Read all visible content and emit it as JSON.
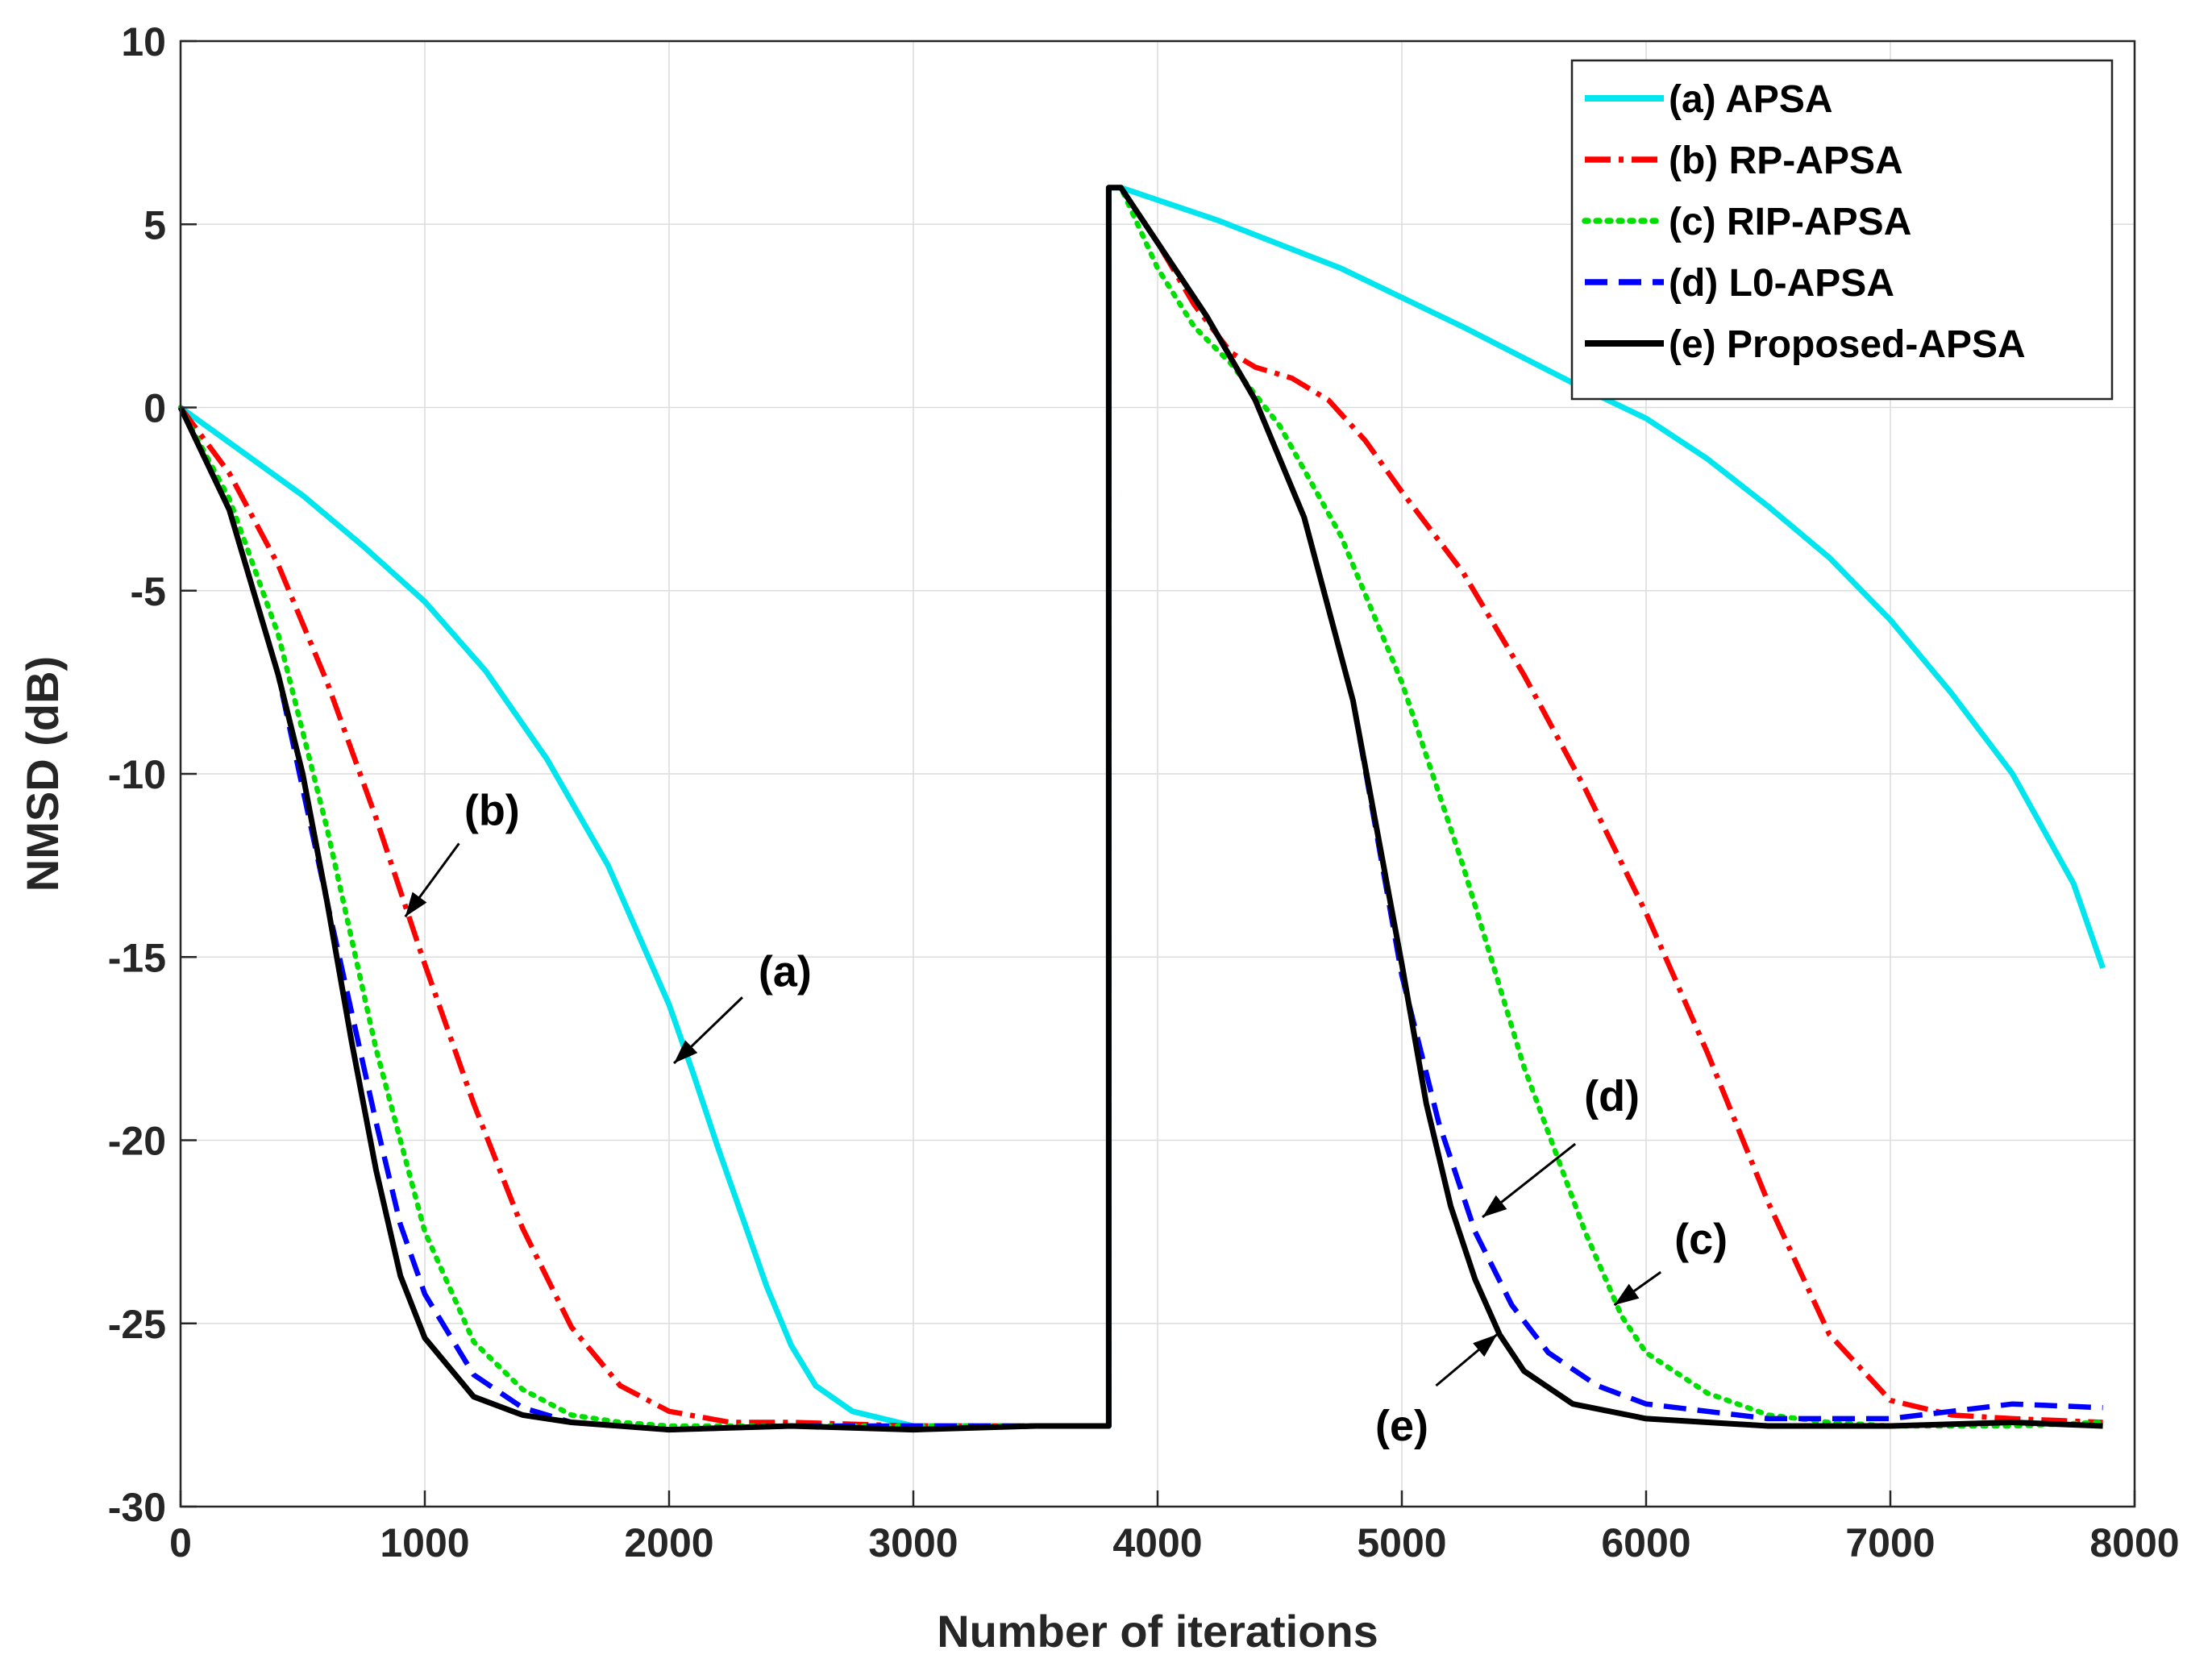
{
  "chart_data": {
    "type": "line",
    "title": "",
    "xlabel": "Number of iterations",
    "ylabel": "NMSD (dB)",
    "xlim": [
      0,
      8000
    ],
    "ylim": [
      -30,
      10
    ],
    "xticks": [
      0,
      1000,
      2000,
      3000,
      4000,
      5000,
      6000,
      7000,
      8000
    ],
    "yticks": [
      -30,
      -25,
      -20,
      -15,
      -10,
      -5,
      0,
      5,
      10
    ],
    "xtick_labels": [
      "0",
      "1000",
      "2000",
      "3000",
      "4000",
      "5000",
      "6000",
      "7000",
      "8000"
    ],
    "ytick_labels": [
      "-30",
      "-25",
      "-20",
      "-15",
      "-10",
      "-5",
      "0",
      "5",
      "10"
    ],
    "grid": true,
    "legend_position": "top-right",
    "series": [
      {
        "name": "(a) APSA",
        "color": "#00e5ee",
        "style": "solid",
        "points": [
          [
            0,
            0
          ],
          [
            250,
            -1.2
          ],
          [
            500,
            -2.4
          ],
          [
            750,
            -3.8
          ],
          [
            1000,
            -5.3
          ],
          [
            1250,
            -7.2
          ],
          [
            1500,
            -9.6
          ],
          [
            1750,
            -12.5
          ],
          [
            2000,
            -16.3
          ],
          [
            2100,
            -18.2
          ],
          [
            2200,
            -20.2
          ],
          [
            2300,
            -22.1
          ],
          [
            2400,
            -24
          ],
          [
            2500,
            -25.6
          ],
          [
            2600,
            -26.7
          ],
          [
            2750,
            -27.4
          ],
          [
            3000,
            -27.8
          ],
          [
            3250,
            -27.8
          ],
          [
            3500,
            -27.8
          ],
          [
            3800,
            -27.8
          ],
          [
            3800,
            6
          ],
          [
            3850,
            6
          ],
          [
            4250,
            5.1
          ],
          [
            4750,
            3.8
          ],
          [
            5250,
            2.2
          ],
          [
            5750,
            0.5
          ],
          [
            6000,
            -0.3
          ],
          [
            6250,
            -1.4
          ],
          [
            6500,
            -2.7
          ],
          [
            6750,
            -4.1
          ],
          [
            7000,
            -5.8
          ],
          [
            7250,
            -7.8
          ],
          [
            7500,
            -10
          ],
          [
            7750,
            -13
          ],
          [
            7870,
            -15.3
          ]
        ]
      },
      {
        "name": "(b) RP-APSA",
        "color": "#ff0000",
        "style": "dashdot",
        "points": [
          [
            0,
            0
          ],
          [
            200,
            -1.8
          ],
          [
            400,
            -4.3
          ],
          [
            600,
            -7.5
          ],
          [
            800,
            -11.2
          ],
          [
            1000,
            -15.2
          ],
          [
            1200,
            -19
          ],
          [
            1400,
            -22.4
          ],
          [
            1600,
            -25.1
          ],
          [
            1800,
            -26.7
          ],
          [
            2000,
            -27.4
          ],
          [
            2250,
            -27.7
          ],
          [
            2500,
            -27.7
          ],
          [
            3000,
            -27.8
          ],
          [
            3500,
            -27.8
          ],
          [
            3800,
            -27.8
          ],
          [
            3800,
            6
          ],
          [
            3850,
            6
          ],
          [
            4000,
            4.5
          ],
          [
            4150,
            2.8
          ],
          [
            4300,
            1.5
          ],
          [
            4400,
            1.1
          ],
          [
            4550,
            0.8
          ],
          [
            4700,
            0.2
          ],
          [
            4850,
            -0.9
          ],
          [
            5000,
            -2.3
          ],
          [
            5250,
            -4.5
          ],
          [
            5500,
            -7.3
          ],
          [
            5750,
            -10.4
          ],
          [
            6000,
            -13.8
          ],
          [
            6250,
            -17.6
          ],
          [
            6500,
            -21.7
          ],
          [
            6750,
            -25.3
          ],
          [
            7000,
            -27.1
          ],
          [
            7250,
            -27.5
          ],
          [
            7500,
            -27.6
          ],
          [
            7870,
            -27.7
          ]
        ]
      },
      {
        "name": "(c) RIP-APSA",
        "color": "#00e000",
        "style": "dotted",
        "points": [
          [
            0,
            0
          ],
          [
            200,
            -2.5
          ],
          [
            400,
            -6.2
          ],
          [
            600,
            -11.5
          ],
          [
            800,
            -17.5
          ],
          [
            1000,
            -22.5
          ],
          [
            1200,
            -25.5
          ],
          [
            1400,
            -26.8
          ],
          [
            1600,
            -27.5
          ],
          [
            1800,
            -27.7
          ],
          [
            2000,
            -27.8
          ],
          [
            2500,
            -27.8
          ],
          [
            3000,
            -27.8
          ],
          [
            3500,
            -27.8
          ],
          [
            3800,
            -27.8
          ],
          [
            3800,
            6
          ],
          [
            3850,
            6
          ],
          [
            4000,
            3.8
          ],
          [
            4150,
            2.2
          ],
          [
            4300,
            1.2
          ],
          [
            4500,
            -0.5
          ],
          [
            4750,
            -3.5
          ],
          [
            5000,
            -7.5
          ],
          [
            5250,
            -12.5
          ],
          [
            5500,
            -18
          ],
          [
            5750,
            -22.5
          ],
          [
            5900,
            -24.8
          ],
          [
            6000,
            -25.8
          ],
          [
            6250,
            -26.9
          ],
          [
            6500,
            -27.5
          ],
          [
            6750,
            -27.7
          ],
          [
            7000,
            -27.8
          ],
          [
            7500,
            -27.8
          ],
          [
            7870,
            -27.7
          ]
        ]
      },
      {
        "name": "(d) L0-APSA",
        "color": "#0000ff",
        "style": "dashed",
        "points": [
          [
            0,
            0
          ],
          [
            200,
            -2.8
          ],
          [
            400,
            -7.3
          ],
          [
            600,
            -13.5
          ],
          [
            700,
            -16.5
          ],
          [
            800,
            -19.5
          ],
          [
            900,
            -22.3
          ],
          [
            1000,
            -24.2
          ],
          [
            1200,
            -26.4
          ],
          [
            1400,
            -27.3
          ],
          [
            1600,
            -27.7
          ],
          [
            2000,
            -27.9
          ],
          [
            2500,
            -27.8
          ],
          [
            3000,
            -27.8
          ],
          [
            3500,
            -27.8
          ],
          [
            3800,
            -27.8
          ],
          [
            3800,
            6
          ],
          [
            3850,
            6
          ],
          [
            4000,
            4.5
          ],
          [
            4200,
            2.5
          ],
          [
            4400,
            0.2
          ],
          [
            4600,
            -3
          ],
          [
            4800,
            -8
          ],
          [
            5000,
            -15.5
          ],
          [
            5150,
            -19.5
          ],
          [
            5300,
            -22.5
          ],
          [
            5450,
            -24.5
          ],
          [
            5600,
            -25.8
          ],
          [
            5800,
            -26.7
          ],
          [
            6000,
            -27.2
          ],
          [
            6500,
            -27.6
          ],
          [
            7000,
            -27.6
          ],
          [
            7250,
            -27.4
          ],
          [
            7500,
            -27.2
          ],
          [
            7870,
            -27.3
          ]
        ]
      },
      {
        "name": "(e) Proposed-APSA",
        "color": "#000000",
        "style": "solid",
        "points": [
          [
            0,
            0
          ],
          [
            200,
            -2.8
          ],
          [
            400,
            -7.3
          ],
          [
            500,
            -10
          ],
          [
            600,
            -13.5
          ],
          [
            700,
            -17.3
          ],
          [
            800,
            -20.8
          ],
          [
            900,
            -23.7
          ],
          [
            1000,
            -25.4
          ],
          [
            1200,
            -27
          ],
          [
            1400,
            -27.5
          ],
          [
            1600,
            -27.7
          ],
          [
            2000,
            -27.9
          ],
          [
            2500,
            -27.8
          ],
          [
            3000,
            -27.9
          ],
          [
            3500,
            -27.8
          ],
          [
            3800,
            -27.8
          ],
          [
            3800,
            6
          ],
          [
            3850,
            6
          ],
          [
            4000,
            4.5
          ],
          [
            4200,
            2.5
          ],
          [
            4400,
            0.2
          ],
          [
            4600,
            -3
          ],
          [
            4800,
            -8
          ],
          [
            5000,
            -15.2
          ],
          [
            5100,
            -19
          ],
          [
            5200,
            -21.8
          ],
          [
            5300,
            -23.8
          ],
          [
            5400,
            -25.3
          ],
          [
            5500,
            -26.3
          ],
          [
            5700,
            -27.2
          ],
          [
            6000,
            -27.6
          ],
          [
            6500,
            -27.8
          ],
          [
            7000,
            -27.8
          ],
          [
            7500,
            -27.7
          ],
          [
            7870,
            -27.8
          ]
        ]
      }
    ],
    "annotations": [
      {
        "label": "(a)",
        "text_at": [
          2475,
          -15.8
        ],
        "arrow_from": [
          2300,
          -16.1
        ],
        "arrow_to": [
          2020,
          -17.9
        ]
      },
      {
        "label": "(b)",
        "text_at": [
          1275,
          -11.4
        ],
        "arrow_from": [
          1140,
          -11.9
        ],
        "arrow_to": [
          920,
          -13.9
        ]
      },
      {
        "label": "(c)",
        "text_at": [
          6225,
          -23.1
        ],
        "arrow_from": [
          6060,
          -23.6
        ],
        "arrow_to": [
          5870,
          -24.5
        ]
      },
      {
        "label": "(d)",
        "text_at": [
          5860,
          -19.2
        ],
        "arrow_from": [
          5710,
          -20.1
        ],
        "arrow_to": [
          5330,
          -22.1
        ]
      },
      {
        "label": "(e)",
        "text_at": [
          5000,
          -28.2
        ],
        "arrow_from": [
          5140,
          -26.7
        ],
        "arrow_to": [
          5390,
          -25.3
        ]
      }
    ]
  }
}
